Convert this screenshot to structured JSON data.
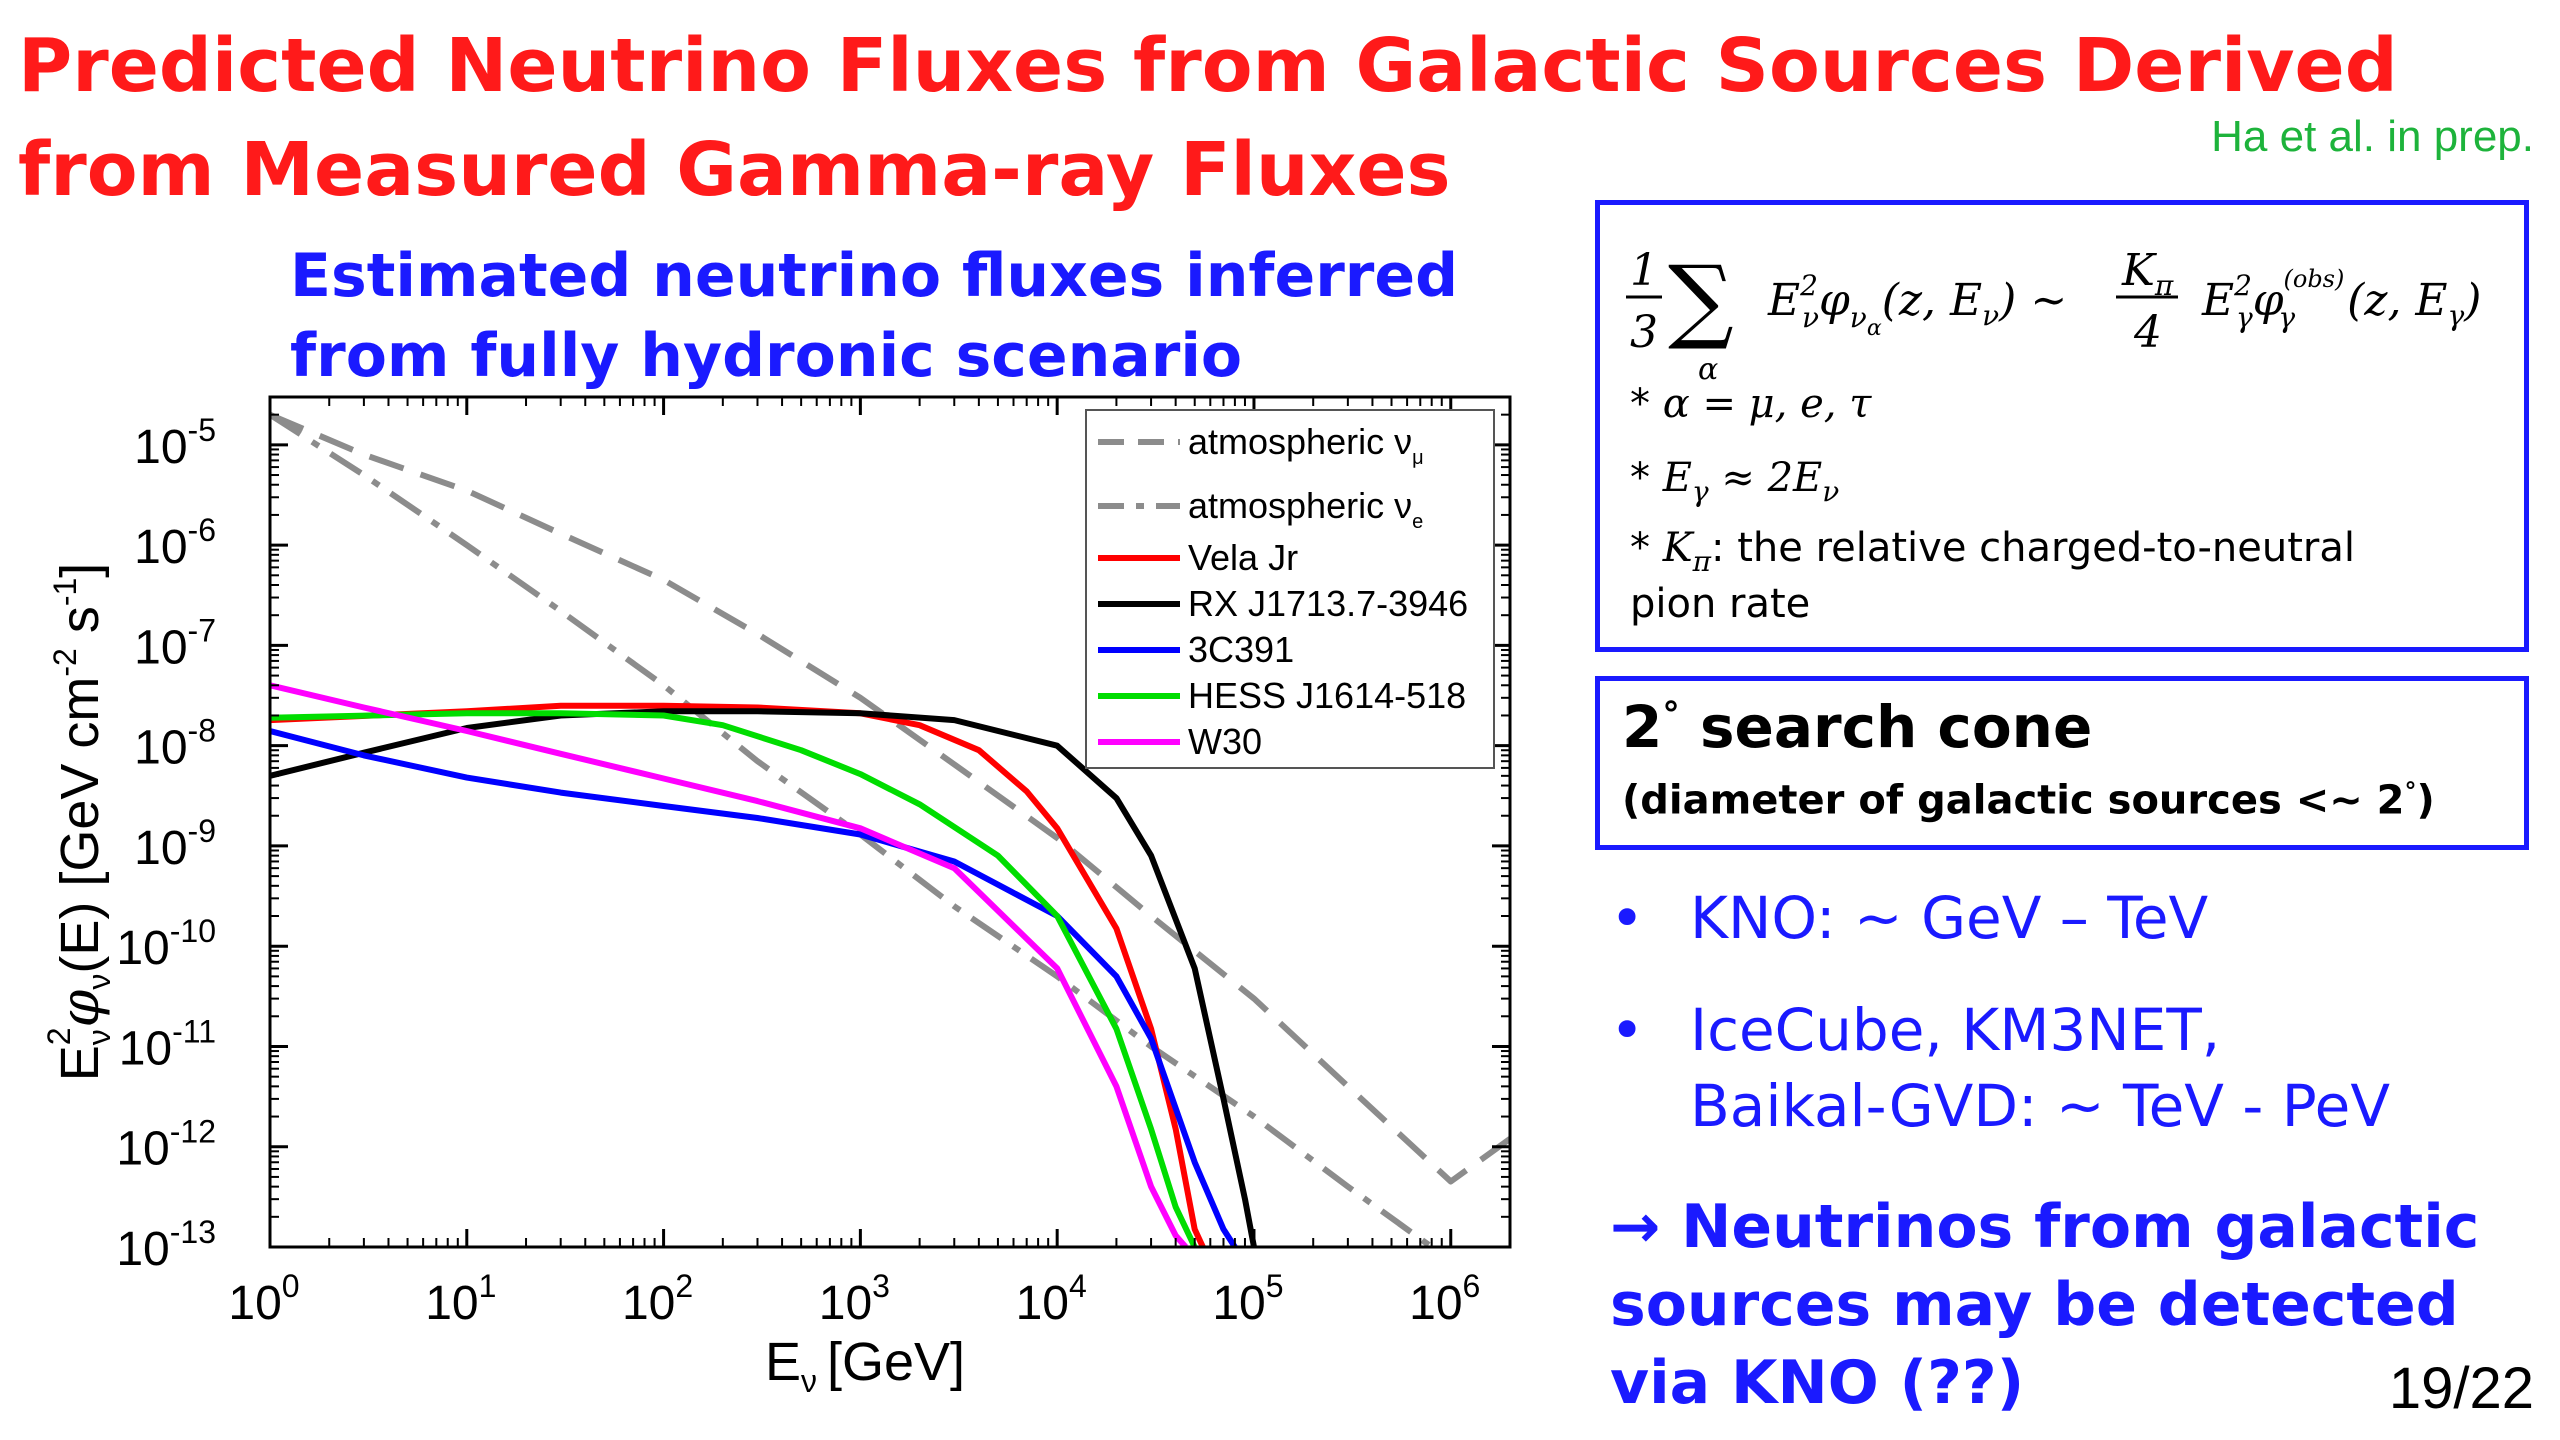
{
  "slide": {
    "title_line1": "Predicted Neutrino Fluxes from Galactic Sources Derived",
    "title_line2": "from Measured Gamma-ray Fluxes",
    "credit": "Ha et al. in prep.",
    "subtitle_line1": "Estimated neutrino fluxes inferred",
    "subtitle_line2": "from fully hydronic scenario",
    "page_number": "19/22"
  },
  "formula_box": {
    "alpha_note": "α =  μ, e, τ",
    "egamma_note": "E",
    "kpi_label": "K",
    "kpi_text": ": the relative charged-to-neutral",
    "kpi_text2": "pion rate"
  },
  "cone_box": {
    "title": "search cone",
    "degree": "2",
    "subtitle": "(diameter of galactic sources <~ 2",
    "subtitle_end": ")"
  },
  "bullets": [
    {
      "text": "KNO: ~ GeV – TeV"
    },
    {
      "text": "IceCube, KM3NET,"
    },
    {
      "text": "Baikal-GVD: ~ TeV - PeV"
    }
  ],
  "conclusion": {
    "line1": "→ Neutrinos from galactic",
    "line2": "sources may be detected",
    "line3": "via KNO (??)"
  },
  "chart_data": {
    "type": "line",
    "xscale": "log",
    "yscale": "log",
    "xlim": [
      1,
      2000000
    ],
    "ylim": [
      1e-13,
      3e-05
    ],
    "xlabel": "E",
    "xlabel_sub": "ν",
    "xlabel_unit": "[GeV]",
    "ylabel": "E",
    "ylabel_rest": "(E) [GeV cm",
    "x_ticks": [
      {
        "base": "10",
        "exp": "0",
        "value": 1
      },
      {
        "base": "10",
        "exp": "1",
        "value": 10
      },
      {
        "base": "10",
        "exp": "2",
        "value": 100
      },
      {
        "base": "10",
        "exp": "3",
        "value": 1000
      },
      {
        "base": "10",
        "exp": "4",
        "value": 10000
      },
      {
        "base": "10",
        "exp": "5",
        "value": 100000
      },
      {
        "base": "10",
        "exp": "6",
        "value": 1000000
      }
    ],
    "y_ticks": [
      {
        "base": "10",
        "exp": "-5",
        "value": 1e-05
      },
      {
        "base": "10",
        "exp": "-6",
        "value": 1e-06
      },
      {
        "base": "10",
        "exp": "-7",
        "value": 1e-07
      },
      {
        "base": "10",
        "exp": "-8",
        "value": 1e-08
      },
      {
        "base": "10",
        "exp": "-9",
        "value": 1e-09
      },
      {
        "base": "10",
        "exp": "-10",
        "value": 1e-10
      },
      {
        "base": "10",
        "exp": "-11",
        "value": 1e-11
      },
      {
        "base": "10",
        "exp": "-12",
        "value": 1e-12
      },
      {
        "base": "10",
        "exp": "-13",
        "value": 1e-13
      }
    ],
    "legend_position": "top-right",
    "series": [
      {
        "name": "atmospheric ν",
        "name_sub": "μ",
        "color": "#8c8c8c",
        "dash": "dash",
        "x": [
          1,
          3,
          10,
          30,
          100,
          300,
          1000,
          3000,
          10000,
          30000,
          100000,
          300000,
          1000000,
          2000000
        ],
        "y": [
          2e-05,
          8e-06,
          3.5e-06,
          1.3e-06,
          4.5e-07,
          1.3e-07,
          3e-08,
          6.5e-09,
          1.2e-09,
          2e-10,
          3e-11,
          4e-12,
          4.5e-13,
          1.2e-12
        ]
      },
      {
        "name": "atmospheric ν",
        "name_sub": "e",
        "color": "#8c8c8c",
        "dash": "dashdot",
        "x": [
          1,
          3,
          10,
          30,
          100,
          300,
          1000,
          3000,
          10000,
          30000,
          100000,
          300000,
          800000
        ],
        "y": [
          2e-05,
          5e-06,
          1e-06,
          2.2e-07,
          4e-08,
          7e-09,
          1.3e-09,
          2.5e-10,
          5e-11,
          1e-11,
          2e-12,
          4e-13,
          1e-13
        ]
      },
      {
        "name": "Vela Jr",
        "color": "#ff0000",
        "dash": "solid",
        "x": [
          1,
          10,
          30,
          100,
          300,
          1000,
          2000,
          4000,
          7000,
          10000,
          20000,
          30000,
          40000,
          50000,
          55000
        ],
        "y": [
          1.8e-08,
          2.2e-08,
          2.5e-08,
          2.5e-08,
          2.4e-08,
          2.1e-08,
          1.6e-08,
          9e-09,
          3.5e-09,
          1.5e-09,
          1.5e-10,
          1.5e-11,
          1.5e-12,
          1.5e-13,
          1e-13
        ]
      },
      {
        "name": "RX J1713.7-3946",
        "color": "#000000",
        "dash": "solid",
        "x": [
          1,
          3,
          10,
          30,
          100,
          300,
          1000,
          3000,
          10000,
          20000,
          30000,
          50000,
          70000,
          90000,
          100000
        ],
        "y": [
          5e-09,
          8.5e-09,
          1.5e-08,
          2e-08,
          2.2e-08,
          2.2e-08,
          2.1e-08,
          1.8e-08,
          1e-08,
          3e-09,
          8e-10,
          6e-11,
          3e-12,
          3e-13,
          1e-13
        ]
      },
      {
        "name": "3C391",
        "color": "#0000ff",
        "dash": "solid",
        "x": [
          1,
          3,
          10,
          30,
          100,
          300,
          1000,
          3000,
          10000,
          20000,
          30000,
          50000,
          70000,
          80000
        ],
        "y": [
          1.4e-08,
          8e-09,
          4.8e-09,
          3.4e-09,
          2.5e-09,
          1.9e-09,
          1.3e-09,
          7e-10,
          2e-10,
          5e-11,
          1.2e-11,
          7e-13,
          1.5e-13,
          1e-13
        ]
      },
      {
        "name": "HESS J1614-518",
        "color": "#00dd00",
        "dash": "solid",
        "x": [
          1,
          10,
          30,
          100,
          200,
          500,
          1000,
          2000,
          5000,
          10000,
          20000,
          30000,
          40000,
          50000
        ],
        "y": [
          1.9e-08,
          2.1e-08,
          2.1e-08,
          2e-08,
          1.6e-08,
          9e-09,
          5.2e-09,
          2.6e-09,
          8e-10,
          2e-10,
          1.5e-11,
          1.5e-12,
          2.5e-13,
          1e-13
        ]
      },
      {
        "name": "W30",
        "color": "#ff00ff",
        "dash": "solid",
        "x": [
          1,
          3,
          10,
          30,
          100,
          300,
          1000,
          3000,
          10000,
          20000,
          30000,
          40000,
          45000
        ],
        "y": [
          4e-08,
          2.4e-08,
          1.4e-08,
          8.3e-09,
          4.7e-09,
          2.8e-09,
          1.5e-09,
          6e-10,
          6e-11,
          4e-12,
          4e-13,
          1.3e-13,
          1e-13
        ]
      }
    ]
  }
}
